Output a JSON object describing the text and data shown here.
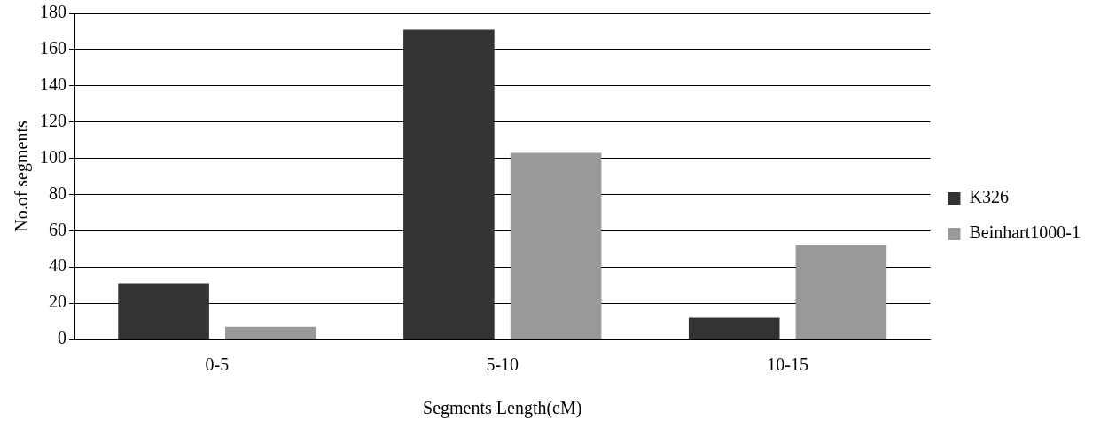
{
  "chart_data": {
    "type": "bar",
    "xlabel": "Segments Length(cM)",
    "ylabel": "No.of segments",
    "categories": [
      "0-5",
      "5-10",
      "10-15"
    ],
    "series": [
      {
        "name": "K326",
        "color": "#333333",
        "values": [
          31,
          171,
          12
        ]
      },
      {
        "name": "Beinhart1000-1",
        "color": "#999999",
        "values": [
          7,
          103,
          52
        ]
      }
    ],
    "ylim": [
      0,
      180
    ],
    "yticks": [
      0,
      20,
      40,
      60,
      80,
      100,
      120,
      140,
      160,
      180
    ],
    "grid": "y",
    "legend": "right"
  }
}
